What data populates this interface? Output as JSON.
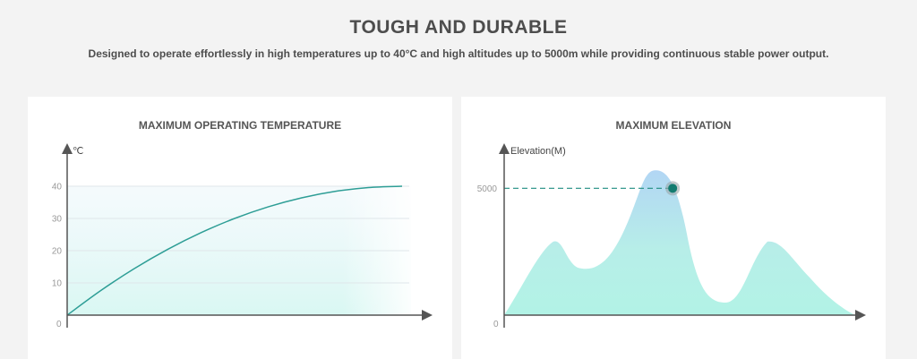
{
  "header": {
    "title": "TOUGH AND DURABLE",
    "subtitle": "Designed to operate effortlessly in high temperatures up to 40°C and high altitudes up to 5000m while providing continuous stable power output."
  },
  "colors": {
    "curve": "#2e9e96",
    "fill_light": "#e6fbf8",
    "marker": "#137c70",
    "axis": "#555555",
    "grid": "#dfe6ea"
  },
  "chart_data": [
    {
      "type": "line",
      "title": "MAXIMUM OPERATING TEMPERATURE",
      "ylabel": "℃",
      "xlabel": "",
      "origin_label": "0",
      "yticks": [
        "10",
        "20",
        "30",
        "40"
      ],
      "ylim": [
        0,
        40
      ],
      "xlim": [
        0,
        1
      ],
      "grid": true,
      "series": [
        {
          "name": "Temperature",
          "x": [
            0,
            0.1,
            0.2,
            0.3,
            0.4,
            0.5,
            0.6,
            0.7,
            0.8,
            0.9,
            1.0
          ],
          "values": [
            0,
            7.6,
            14.4,
            20.4,
            25.6,
            30,
            33.6,
            36.4,
            38.4,
            39.6,
            40
          ]
        }
      ]
    },
    {
      "type": "area",
      "title": "MAXIMUM ELEVATION",
      "ylabel": "Elevation(M)",
      "xlabel": "",
      "origin_label": "0",
      "yticks": [
        "5000"
      ],
      "ylim": [
        0,
        6000
      ],
      "xlim": [
        0,
        1
      ],
      "grid": false,
      "series": [
        {
          "name": "Mountain left",
          "peak": 2900
        },
        {
          "name": "Mountain center",
          "peak": 5700
        },
        {
          "name": "Mountain right",
          "peak": 2900
        }
      ],
      "marker": {
        "x": 0.48,
        "value": 5000
      }
    }
  ]
}
